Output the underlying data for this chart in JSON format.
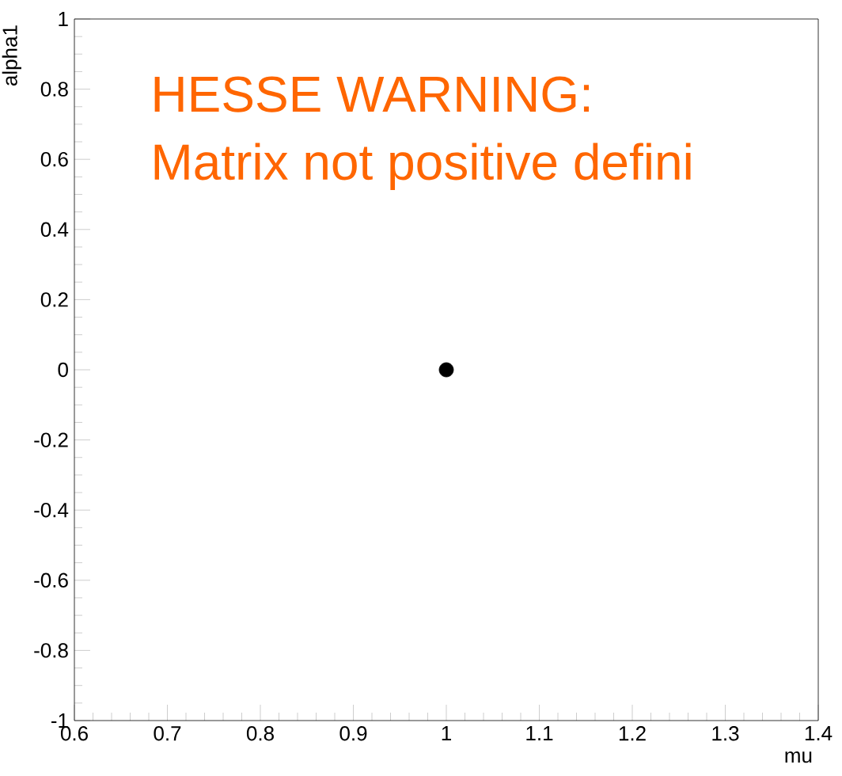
{
  "chart_data": {
    "type": "scatter",
    "x": [
      1
    ],
    "values": [
      0
    ],
    "color": "#000000",
    "xlim": [
      0.6,
      1.4
    ],
    "ylim": [
      -1,
      1
    ],
    "xticks": [
      0.6,
      0.7,
      0.8,
      0.9,
      1,
      1.1,
      1.2,
      1.3,
      1.4
    ],
    "yticks": [
      -1,
      -0.8,
      -0.6,
      -0.4,
      -0.2,
      0,
      0.2,
      0.4,
      0.6,
      0.8,
      1
    ],
    "xlabel": "mu",
    "ylabel": "alpha1",
    "annotations": [
      "HESSE WARNING:",
      "Matrix not positive defini"
    ]
  }
}
